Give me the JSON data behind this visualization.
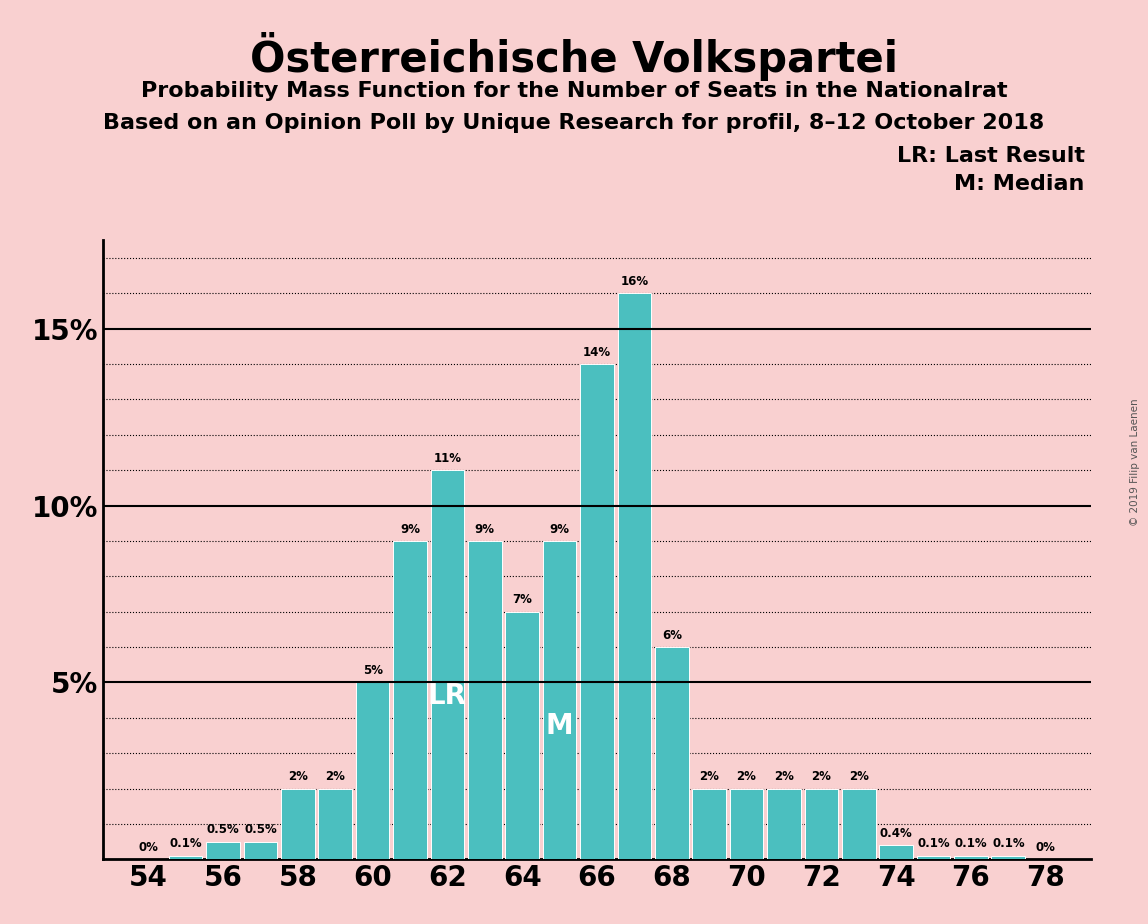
{
  "title": "Österreichische Volkspartei",
  "subtitle1": "Probability Mass Function for the Number of Seats in the Nationalrat",
  "subtitle2": "Based on an Opinion Poll by Unique Research for profil, 8–12 October 2018",
  "copyright": "© 2019 Filip van Laenen",
  "seats": [
    54,
    55,
    56,
    57,
    58,
    59,
    60,
    61,
    62,
    63,
    64,
    65,
    66,
    67,
    68,
    69,
    70,
    71,
    72,
    73,
    74,
    75,
    76,
    77,
    78
  ],
  "values": [
    0.0,
    0.1,
    0.5,
    0.5,
    2.0,
    2.0,
    5.0,
    9.0,
    11.0,
    9.0,
    7.0,
    9.0,
    14.0,
    16.0,
    6.0,
    2.0,
    2.0,
    2.0,
    2.0,
    2.0,
    0.4,
    0.1,
    0.1,
    0.1,
    0.0
  ],
  "labels": [
    "0%",
    "0.1%",
    "0.5%",
    "0.5%",
    "2%",
    "2%",
    "5%",
    "9%",
    "11%",
    "9%",
    "7%",
    "9%",
    "14%",
    "16%",
    "6%",
    "2%",
    "2%",
    "2%",
    "2%",
    "2%",
    "0.4%",
    "0.1%",
    "0.1%",
    "0.1%",
    "0%"
  ],
  "bar_color": "#4bbfbf",
  "background_color": "#f9d0d0",
  "text_color": "#000000",
  "bar_label_color": "#000000",
  "lr_seat": 62,
  "median_seat": 65,
  "lr_label": "LR",
  "median_label": "M",
  "legend_lr": "LR: Last Result",
  "legend_m": "M: Median",
  "ylim_max": 17.5,
  "ytick_vals": [
    0,
    1,
    2,
    3,
    4,
    5,
    6,
    7,
    8,
    9,
    10,
    11,
    12,
    13,
    14,
    15,
    16,
    17
  ],
  "solid_lines": [
    5,
    10,
    15
  ],
  "xlabel_seats": [
    54,
    56,
    58,
    60,
    62,
    64,
    66,
    68,
    70,
    72,
    74,
    76,
    78
  ],
  "bar_width": 0.9,
  "xlim_left": 52.8,
  "xlim_right": 79.2
}
